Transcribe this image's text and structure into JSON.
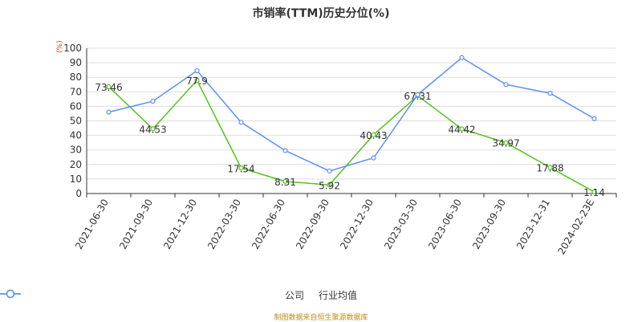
{
  "chart_data": {
    "type": "line",
    "title": "市销率(TTM)历史分位(%)",
    "ylabel": "(%)",
    "ylim": [
      0,
      100
    ],
    "yticks": [
      0,
      10,
      20,
      30,
      40,
      50,
      60,
      70,
      80,
      90,
      100
    ],
    "categories": [
      "2021-06-30",
      "2021-09-30",
      "2021-12-30",
      "2022-03-30",
      "2022-06-30",
      "2022-09-30",
      "2022-12-30",
      "2023-03-30",
      "2023-06-30",
      "2023-09-30",
      "2023-12-31",
      "2024-02-23E"
    ],
    "series": [
      {
        "name": "公司",
        "color": "#52c41a",
        "values": [
          73.46,
          44.53,
          77.9,
          17.54,
          8.31,
          5.92,
          40.43,
          67.31,
          44.42,
          34.97,
          17.88,
          1.14
        ],
        "labels": [
          "73.46",
          "44.53",
          "77.9",
          "17.54",
          "8.31",
          "5.92",
          "40.43",
          "67.31",
          "44.42",
          "34.97",
          "17.88",
          "1.14"
        ]
      },
      {
        "name": "行业均值",
        "color": "#5b8ff9",
        "values": [
          56,
          63.5,
          84.5,
          49,
          29.5,
          15.5,
          24.5,
          68,
          93.5,
          75,
          69,
          51.5
        ]
      }
    ],
    "grid": true,
    "legend": "bottom-center"
  },
  "source_text": "制图数据来自恒生聚源数据库"
}
